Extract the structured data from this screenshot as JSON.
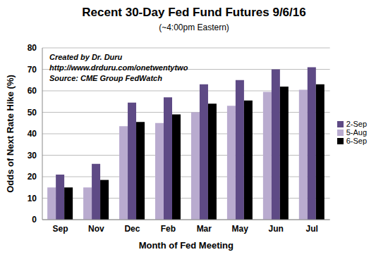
{
  "chart_data": {
    "type": "bar",
    "title": "Recent 30-Day Fed Fund Futures 9/6/16",
    "subtitle": "(~4:00pm Eastern)",
    "annotations": [
      "Created by Dr. Duru",
      "http://www.drduru.com/onetwentytwo",
      "Source: CME Group FedWatch"
    ],
    "x_label": "Month of Fed Meeting",
    "y_label": "Odds of Next Rate Hike (%)",
    "categories": [
      "Sep",
      "Nov",
      "Dec",
      "Feb",
      "Mar",
      "May",
      "Jun",
      "Jul"
    ],
    "series": [
      {
        "name": "5-Aug",
        "color": "#b9abcf",
        "values": [
          15,
          15,
          43.5,
          45,
          50,
          53,
          59.5,
          60.5
        ]
      },
      {
        "name": "2-Sep",
        "color": "#5e4a85",
        "values": [
          21,
          26,
          54.5,
          57,
          63,
          65,
          70,
          71
        ]
      },
      {
        "name": "6-Sep",
        "color": "#000000",
        "values": [
          15,
          18.5,
          45.5,
          49,
          54,
          55.5,
          62,
          63
        ]
      }
    ],
    "ylim": [
      0,
      80
    ],
    "yticks": [
      0,
      10,
      20,
      30,
      40,
      50,
      60,
      70,
      80
    ],
    "grid": true,
    "legend": "right"
  }
}
